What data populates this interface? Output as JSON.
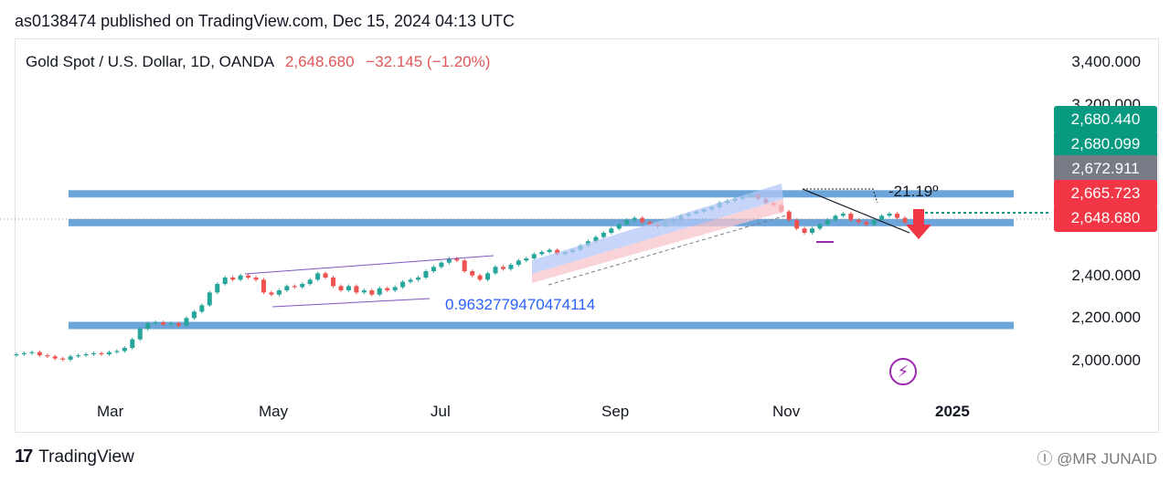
{
  "header": {
    "publisher_line": "as0138474 published on TradingView.com, Dec 15, 2024 04:13 UTC"
  },
  "symbol": {
    "name": "Gold Spot / U.S. Dollar, 1D, OANDA",
    "price": "2,648.680",
    "change": "−32.145 (−1.20%)"
  },
  "price_tags": [
    {
      "label": "2,680.440",
      "color": "#089981"
    },
    {
      "label": "2,680.099",
      "color": "#089981"
    },
    {
      "label": "2,672.911",
      "color": "#787b86"
    },
    {
      "label": "2,665.723",
      "color": "#f23645"
    },
    {
      "label": "2,648.680",
      "color": "#f23645"
    }
  ],
  "annotations": {
    "ratio_text": "0.9632779470474114",
    "angle_text": "-21.19º"
  },
  "footer": {
    "brand": "TradingView",
    "watermark": "Ⓘ @MR JUNAID"
  },
  "icons": {
    "bolt": "lightning-bolt-icon",
    "logo": "tradingview-logo-icon",
    "arrow": "down-arrow-icon"
  },
  "chart_data": {
    "type": "candlestick",
    "title": "Gold Spot / U.S. Dollar, 1D, OANDA",
    "y_ticks": [
      {
        "value": 3400,
        "label": "3,400.000"
      },
      {
        "value": 3200,
        "label": "3,200.000"
      },
      {
        "value": 2400,
        "label": "2,400.000"
      },
      {
        "value": 2200,
        "label": "2,200.000"
      },
      {
        "value": 2000,
        "label": "2,000.000"
      }
    ],
    "x_ticks": [
      "Mar",
      "May",
      "Jul",
      "Sep",
      "Nov",
      "2025"
    ],
    "ylim": [
      1850,
      3500
    ],
    "colors": {
      "up": "#26a69a",
      "down": "#ef5350",
      "level": "#5b9bd5"
    },
    "levels": [
      2783,
      2648,
      2165
    ],
    "series": [
      {
        "name": "close",
        "values": [
          2030,
          2035,
          2040,
          2025,
          2020,
          2010,
          2005,
          2020,
          2025,
          2030,
          2035,
          2030,
          2040,
          2045,
          2060,
          2100,
          2150,
          2175,
          2180,
          2170,
          2175,
          2165,
          2200,
          2230,
          2260,
          2320,
          2360,
          2390,
          2380,
          2400,
          2390,
          2380,
          2320,
          2310,
          2330,
          2350,
          2345,
          2360,
          2380,
          2410,
          2390,
          2350,
          2330,
          2350,
          2320,
          2330,
          2310,
          2340,
          2330,
          2345,
          2370,
          2380,
          2390,
          2420,
          2440,
          2460,
          2480,
          2470,
          2420,
          2400,
          2380,
          2410,
          2440,
          2430,
          2450,
          2470,
          2480,
          2500,
          2510,
          2520,
          2500,
          2510,
          2520,
          2540,
          2560,
          2580,
          2600,
          2620,
          2640,
          2660,
          2670,
          2650,
          2640,
          2630,
          2650,
          2660,
          2680,
          2690,
          2700,
          2710,
          2720,
          2740,
          2750,
          2760,
          2770,
          2780,
          2760,
          2740,
          2730,
          2700,
          2660,
          2620,
          2600,
          2620,
          2640,
          2660,
          2680,
          2690,
          2660,
          2650,
          2640,
          2660,
          2680,
          2690,
          2670,
          2649
        ]
      }
    ]
  }
}
